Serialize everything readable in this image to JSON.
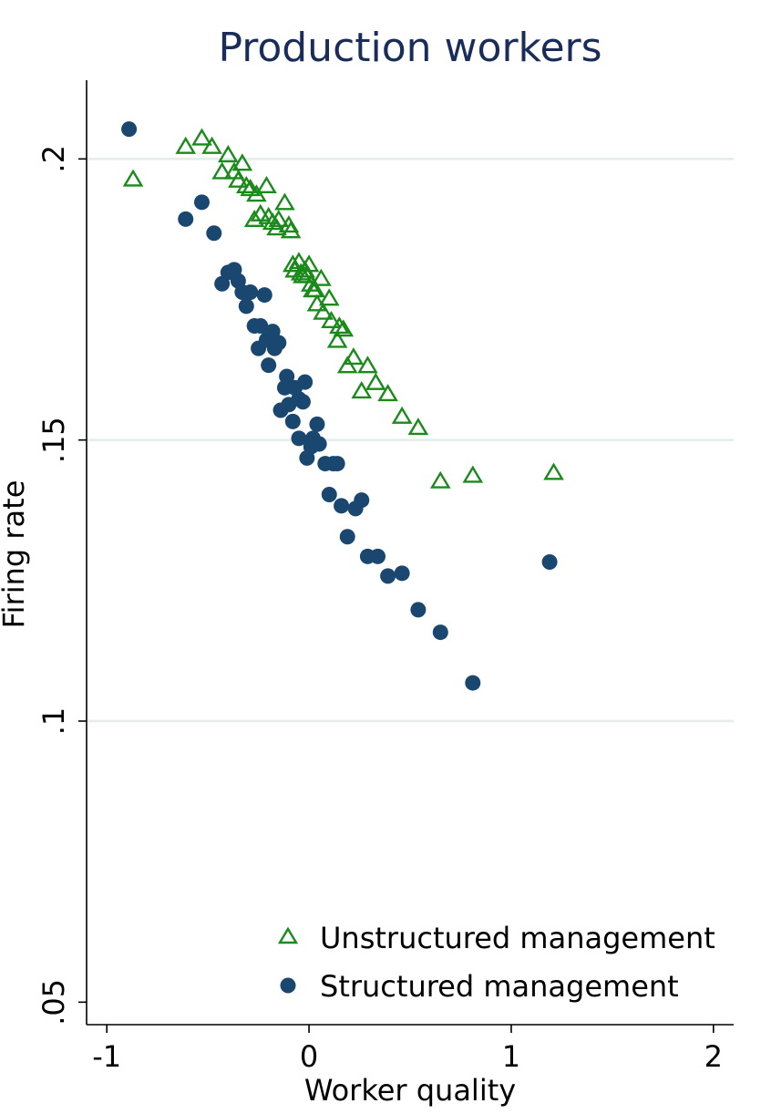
{
  "chart_data": {
    "type": "scatter",
    "title": "Production workers",
    "xlabel": "Worker quality",
    "ylabel": "Firing rate",
    "xlim": [
      -1.1,
      2.1
    ],
    "ylim": [
      0.046,
      0.214
    ],
    "x_ticks": [
      {
        "value": -1,
        "label": "-1"
      },
      {
        "value": 0,
        "label": "0"
      },
      {
        "value": 1,
        "label": "1"
      },
      {
        "value": 2,
        "label": "2"
      }
    ],
    "y_ticks": [
      {
        "value": 0.05,
        "label": ".05"
      },
      {
        "value": 0.1,
        "label": ".1"
      },
      {
        "value": 0.15,
        "label": ".15"
      },
      {
        "value": 0.2,
        "label": ".2"
      }
    ],
    "grid": "horizontal",
    "legend_position": "bottom-right",
    "colors": {
      "unstructured": "#1a8a1a",
      "structured": "#1a476f",
      "grid": "#e4ecec",
      "title": "#1a2d5a"
    },
    "series": [
      {
        "name": "Unstructured management",
        "marker": "triangle-hollow",
        "points": [
          [
            -0.87,
            0.1965
          ],
          [
            -0.61,
            0.2023
          ],
          [
            -0.53,
            0.2038
          ],
          [
            -0.48,
            0.2023
          ],
          [
            -0.43,
            0.1978
          ],
          [
            -0.4,
            0.2008
          ],
          [
            -0.37,
            0.1978
          ],
          [
            -0.35,
            0.1963
          ],
          [
            -0.33,
            0.1993
          ],
          [
            -0.31,
            0.1953
          ],
          [
            -0.29,
            0.1948
          ],
          [
            -0.27,
            0.1893
          ],
          [
            -0.26,
            0.1938
          ],
          [
            -0.24,
            0.1903
          ],
          [
            -0.21,
            0.1953
          ],
          [
            -0.2,
            0.1898
          ],
          [
            -0.18,
            0.1888
          ],
          [
            -0.16,
            0.1878
          ],
          [
            -0.15,
            0.1893
          ],
          [
            -0.12,
            0.1923
          ],
          [
            -0.1,
            0.1883
          ],
          [
            -0.09,
            0.1873
          ],
          [
            -0.08,
            0.1813
          ],
          [
            -0.07,
            0.1803
          ],
          [
            -0.05,
            0.1818
          ],
          [
            -0.04,
            0.1798
          ],
          [
            -0.03,
            0.1793
          ],
          [
            -0.02,
            0.1803
          ],
          [
            -0.01,
            0.1793
          ],
          [
            0.0,
            0.1813
          ],
          [
            0.01,
            0.1778
          ],
          [
            0.02,
            0.1768
          ],
          [
            0.03,
            0.1768
          ],
          [
            0.04,
            0.1743
          ],
          [
            0.06,
            0.1788
          ],
          [
            0.07,
            0.1728
          ],
          [
            0.1,
            0.1753
          ],
          [
            0.11,
            0.1713
          ],
          [
            0.14,
            0.1678
          ],
          [
            0.15,
            0.1703
          ],
          [
            0.17,
            0.1698
          ],
          [
            0.19,
            0.1633
          ],
          [
            0.22,
            0.1648
          ],
          [
            0.26,
            0.1588
          ],
          [
            0.29,
            0.1633
          ],
          [
            0.33,
            0.1603
          ],
          [
            0.39,
            0.1583
          ],
          [
            0.46,
            0.1543
          ],
          [
            0.54,
            0.1523
          ],
          [
            0.65,
            0.1428
          ],
          [
            0.81,
            0.1438
          ],
          [
            1.21,
            0.1443
          ]
        ]
      },
      {
        "name": "Structured management",
        "marker": "circle-filled",
        "points": [
          [
            -0.89,
            0.2053
          ],
          [
            -0.61,
            0.1893
          ],
          [
            -0.53,
            0.1923
          ],
          [
            -0.47,
            0.1868
          ],
          [
            -0.43,
            0.1778
          ],
          [
            -0.4,
            0.1798
          ],
          [
            -0.37,
            0.1803
          ],
          [
            -0.35,
            0.1783
          ],
          [
            -0.33,
            0.1763
          ],
          [
            -0.31,
            0.1738
          ],
          [
            -0.29,
            0.1763
          ],
          [
            -0.27,
            0.1703
          ],
          [
            -0.25,
            0.1663
          ],
          [
            -0.24,
            0.1703
          ],
          [
            -0.22,
            0.1758
          ],
          [
            -0.21,
            0.1678
          ],
          [
            -0.2,
            0.1633
          ],
          [
            -0.18,
            0.1693
          ],
          [
            -0.17,
            0.1663
          ],
          [
            -0.15,
            0.1673
          ],
          [
            -0.14,
            0.1553
          ],
          [
            -0.12,
            0.1593
          ],
          [
            -0.11,
            0.1613
          ],
          [
            -0.1,
            0.1563
          ],
          [
            -0.08,
            0.1533
          ],
          [
            -0.07,
            0.1593
          ],
          [
            -0.05,
            0.1573
          ],
          [
            -0.05,
            0.1503
          ],
          [
            -0.03,
            0.1568
          ],
          [
            -0.02,
            0.1603
          ],
          [
            -0.01,
            0.1468
          ],
          [
            0.01,
            0.1488
          ],
          [
            0.02,
            0.1503
          ],
          [
            0.04,
            0.1528
          ],
          [
            0.05,
            0.1493
          ],
          [
            0.08,
            0.1458
          ],
          [
            0.1,
            0.1403
          ],
          [
            0.12,
            0.1458
          ],
          [
            0.14,
            0.1458
          ],
          [
            0.16,
            0.1383
          ],
          [
            0.19,
            0.1328
          ],
          [
            0.23,
            0.1378
          ],
          [
            0.26,
            0.1393
          ],
          [
            0.29,
            0.1293
          ],
          [
            0.34,
            0.1293
          ],
          [
            0.39,
            0.1258
          ],
          [
            0.46,
            0.1263
          ],
          [
            0.54,
            0.1198
          ],
          [
            0.65,
            0.1158
          ],
          [
            0.81,
            0.1068
          ],
          [
            1.19,
            0.1283
          ]
        ]
      }
    ]
  }
}
